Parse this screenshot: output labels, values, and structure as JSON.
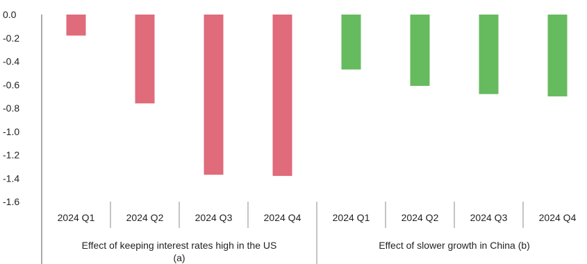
{
  "chart_data": {
    "type": "bar",
    "title": "",
    "xlabel": "",
    "ylabel": "",
    "ylim": [
      -1.6,
      0.0
    ],
    "yticks": [
      "0.0",
      "-0.2",
      "-0.4",
      "-0.6",
      "-0.8",
      "-1.0",
      "-1.2",
      "-1.4",
      "-1.6"
    ],
    "grid": false,
    "legend": "none",
    "groups": [
      {
        "label_line1": "Effect of keeping interest rates high in the US",
        "label_line2": "(a)",
        "categories": [
          "2024 Q1",
          "2024 Q2",
          "2024 Q3",
          "2024 Q4"
        ],
        "values": [
          -0.18,
          -0.76,
          -1.37,
          -1.38
        ],
        "color": "#df6b7b"
      },
      {
        "label_line1": "Effect of slower growth in China (b)",
        "label_line2": "",
        "categories": [
          "2024 Q1",
          "2024 Q2",
          "2024 Q3",
          "2024 Q4"
        ],
        "values": [
          -0.47,
          -0.61,
          -0.68,
          -0.7
        ],
        "color": "#66bb5e"
      }
    ]
  }
}
